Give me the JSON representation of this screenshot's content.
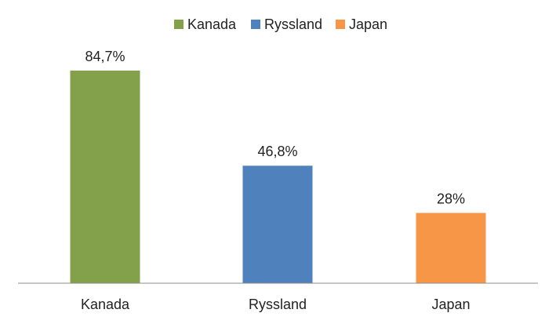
{
  "chart_data": {
    "type": "bar",
    "title": "",
    "xlabel": "",
    "ylabel": "",
    "categories": [
      "Kanada",
      "Ryssland",
      "Japan"
    ],
    "values": [
      84.7,
      46.8,
      28
    ],
    "data_labels": [
      "84,7%",
      "46,8%",
      "28%"
    ],
    "colors": [
      "#83A04B",
      "#4F81BD",
      "#F79646"
    ],
    "ylim": [
      0,
      100
    ],
    "grid": false,
    "legend_position": "top",
    "legend": [
      {
        "label": "Kanada",
        "color": "#83A04B"
      },
      {
        "label": "Ryssland",
        "color": "#4F81BD"
      },
      {
        "label": "Japan",
        "color": "#F79646"
      }
    ]
  }
}
